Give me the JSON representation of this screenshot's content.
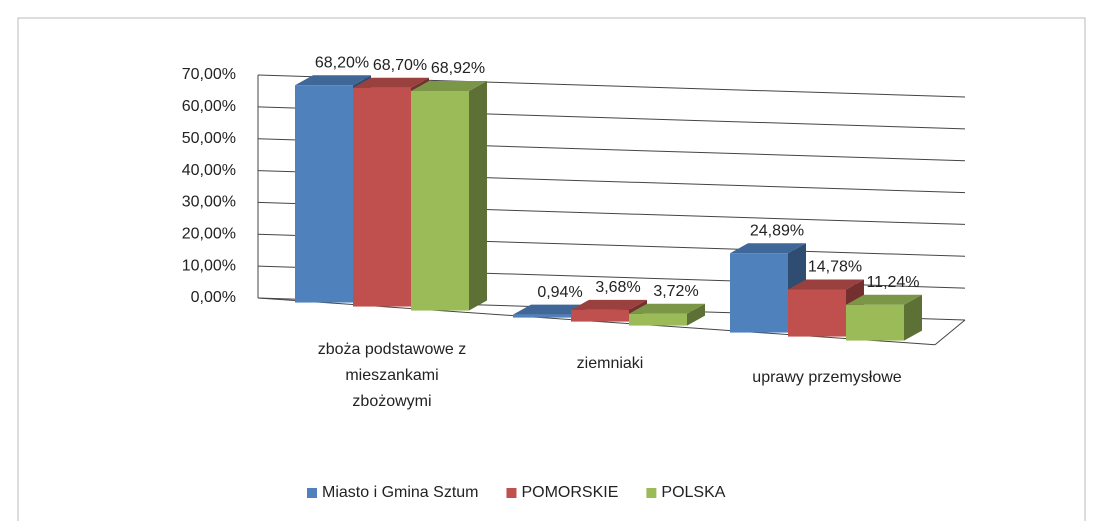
{
  "chart_data": {
    "type": "bar3d",
    "categories": [
      "zboża podstawowe z mieszankami zbożowymi",
      "ziemniaki",
      "uprawy przemysłowe"
    ],
    "series": [
      {
        "name": "Miasto i Gmina Sztum",
        "color": "#4f81bd",
        "values": [
          68.2,
          0.94,
          24.89
        ],
        "value_labels": [
          "68,20%",
          "0,94%",
          "24,89%"
        ]
      },
      {
        "name": "POMORSKIE",
        "color": "#c0504d",
        "values": [
          68.7,
          3.68,
          14.78
        ],
        "value_labels": [
          "68,70%",
          "3,68%",
          "14,78%"
        ]
      },
      {
        "name": "POLSKA",
        "color": "#9bbb59",
        "values": [
          68.92,
          3.72,
          11.24
        ],
        "value_labels": [
          "68,92%",
          "3,72%",
          "11,24%"
        ]
      }
    ],
    "ylim": [
      0,
      70
    ],
    "yticks": [
      {
        "value": 0,
        "label": "0,00%"
      },
      {
        "value": 10,
        "label": "10,00%"
      },
      {
        "value": 20,
        "label": "20,00%"
      },
      {
        "value": 30,
        "label": "30,00%"
      },
      {
        "value": 40,
        "label": "40,00%"
      },
      {
        "value": 50,
        "label": "50,00%"
      },
      {
        "value": 60,
        "label": "60,00%"
      },
      {
        "value": 70,
        "label": "70,00%"
      }
    ],
    "grid": true,
    "legend": "bottom"
  }
}
